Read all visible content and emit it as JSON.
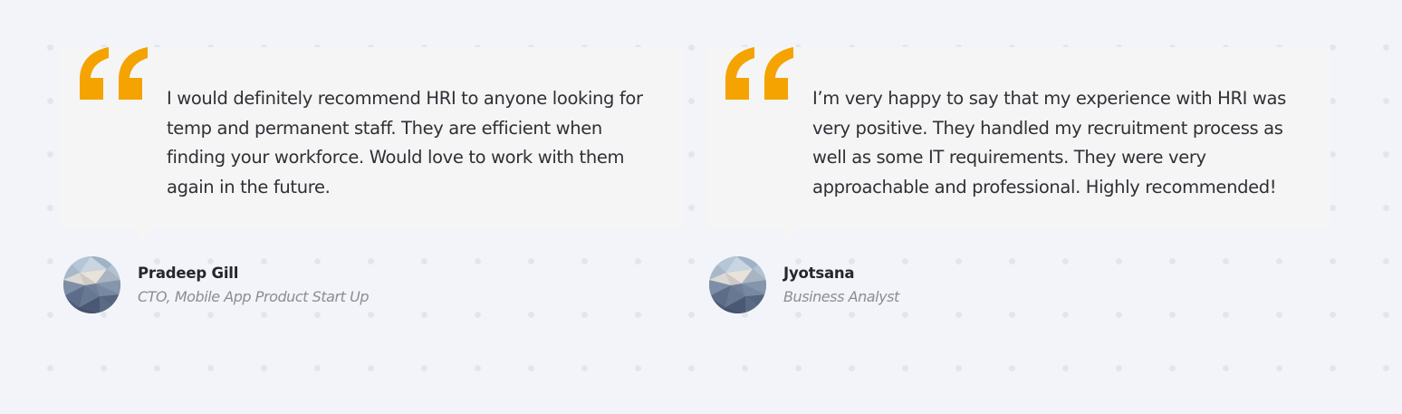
{
  "colors": {
    "background": "#f3f4f9",
    "card": "#f5f5f6",
    "quote_mark": "#f4a300",
    "text": "#2f2f35",
    "name": "#26262c",
    "role": "#8c8c94"
  },
  "testimonials": [
    {
      "quote": "I would definitely recommend HRI to anyone looking for temp and permanent staff. They are efficient when finding your workforce. Would love to work with them again in the future.",
      "name": "Pradeep Gill",
      "role": "CTO, Mobile App Product Start Up",
      "icon": "quote-icon"
    },
    {
      "quote": "I’m very happy to say that my experience with HRI was very positive. They handled my recruitment process as well as some IT requirements. They were very approachable and professional. Highly recommended!",
      "name": "Jyotsana",
      "role": "Business Analyst",
      "icon": "quote-icon"
    }
  ]
}
